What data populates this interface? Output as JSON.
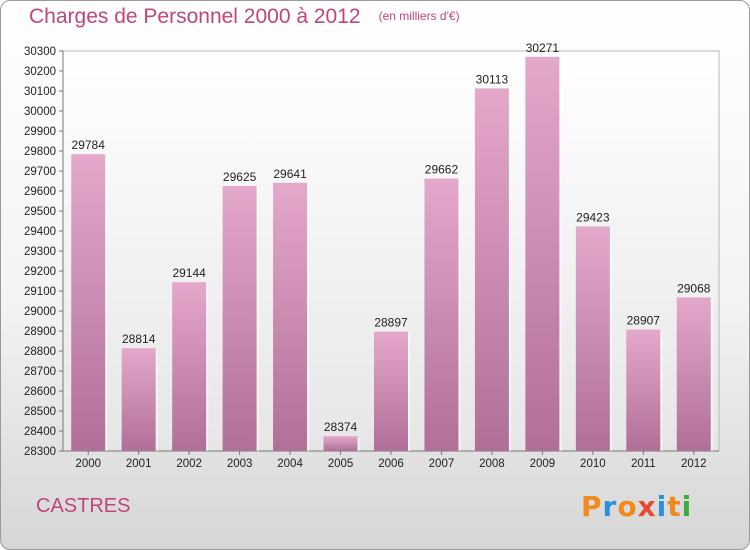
{
  "header": {
    "title": "Charges de Personnel 2000 à 2012",
    "subtitle": "(en milliers d'€)"
  },
  "footer": {
    "city": "CASTRES",
    "logo_text": "Proxiti",
    "logo_colors": [
      "#f08a1c",
      "#2f8fd8",
      "#f08a1c",
      "#e64b2e",
      "#2f8fd8",
      "#f08a1c",
      "#3cae3c"
    ]
  },
  "chart_data": {
    "type": "bar",
    "categories": [
      "2000",
      "2001",
      "2002",
      "2003",
      "2004",
      "2005",
      "2006",
      "2007",
      "2008",
      "2009",
      "2010",
      "2011",
      "2012"
    ],
    "values": [
      29784,
      28814,
      29144,
      29625,
      29641,
      28374,
      28897,
      29662,
      30113,
      30271,
      29423,
      28907,
      29068
    ],
    "ylim": [
      28300,
      30300
    ],
    "ytick_step": 100,
    "grid": false,
    "bar_color": "#d998bd"
  }
}
